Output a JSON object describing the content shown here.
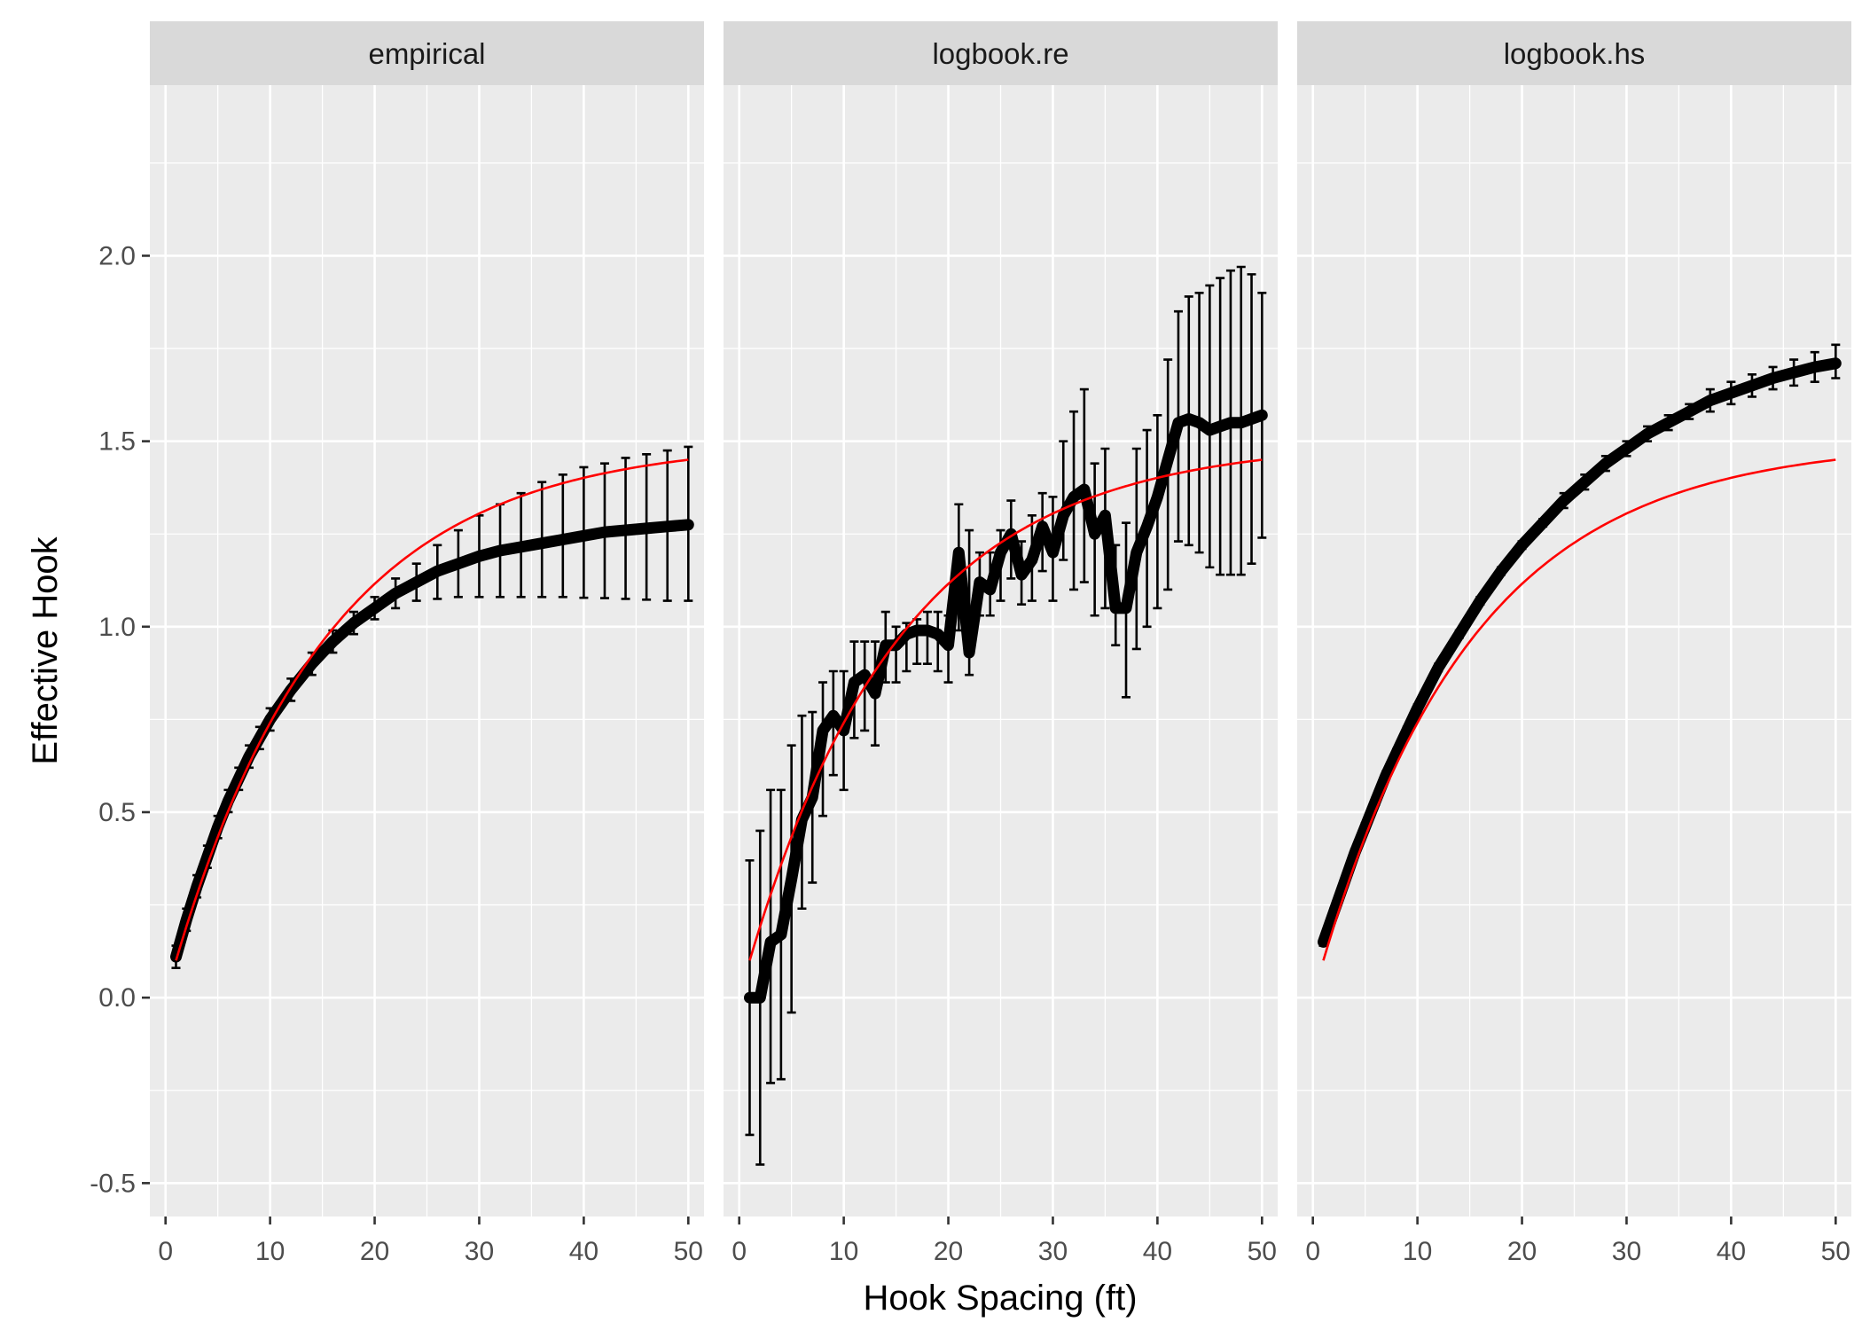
{
  "chart_data": {
    "type": "line",
    "xlabel": "Hook Spacing (ft)",
    "ylabel": "Effective Hook",
    "xlim": [
      -1.5,
      51.5
    ],
    "ylim": [
      -0.59,
      2.46
    ],
    "x_ticks": [
      0,
      10,
      20,
      30,
      40,
      50
    ],
    "y_ticks": [
      -0.5,
      0.0,
      0.5,
      1.0,
      1.5,
      2.0
    ],
    "x_tick_labels": [
      "0",
      "10",
      "20",
      "30",
      "40",
      "50"
    ],
    "y_tick_labels": [
      "-0.5",
      "0.0",
      "0.5",
      "1.0",
      "1.5",
      "2.0"
    ],
    "grid": true,
    "colors": {
      "observed": "#000000",
      "fitted": "#ff0000",
      "panel_background": "#ebebeb",
      "strip_background": "#d9d9d9"
    },
    "fit_model": {
      "x_start": 1,
      "x_end": 50,
      "y_at_start": 0.1,
      "asymptote": 1.5,
      "rate": 0.068
    },
    "panels": [
      {
        "title": "empirical",
        "observed": {
          "x": [
            1,
            2,
            3,
            4,
            5,
            6,
            7,
            8,
            9,
            10,
            12,
            14,
            16,
            18,
            20,
            22,
            24,
            26,
            28,
            30,
            32,
            34,
            36,
            38,
            40,
            42,
            44,
            46,
            48,
            50
          ],
          "y": [
            0.11,
            0.21,
            0.3,
            0.38,
            0.46,
            0.53,
            0.59,
            0.65,
            0.7,
            0.75,
            0.83,
            0.9,
            0.96,
            1.01,
            1.05,
            1.09,
            1.12,
            1.15,
            1.17,
            1.19,
            1.205,
            1.215,
            1.225,
            1.235,
            1.245,
            1.255,
            1.26,
            1.265,
            1.27,
            1.275
          ],
          "lower": [
            0.08,
            0.18,
            0.27,
            0.35,
            0.43,
            0.5,
            0.56,
            0.62,
            0.67,
            0.72,
            0.8,
            0.87,
            0.93,
            0.98,
            1.02,
            1.05,
            1.07,
            1.075,
            1.08,
            1.08,
            1.08,
            1.08,
            1.08,
            1.08,
            1.078,
            1.077,
            1.075,
            1.073,
            1.07,
            1.07
          ],
          "upper": [
            0.14,
            0.24,
            0.33,
            0.41,
            0.49,
            0.56,
            0.62,
            0.68,
            0.73,
            0.78,
            0.86,
            0.93,
            0.99,
            1.04,
            1.08,
            1.13,
            1.17,
            1.22,
            1.26,
            1.3,
            1.33,
            1.36,
            1.39,
            1.41,
            1.43,
            1.44,
            1.455,
            1.465,
            1.475,
            1.485
          ]
        }
      },
      {
        "title": "logbook.re",
        "observed": {
          "x": [
            1,
            2,
            3,
            4,
            5,
            6,
            7,
            8,
            9,
            10,
            11,
            12,
            13,
            14,
            15,
            16,
            17,
            18,
            19,
            20,
            21,
            22,
            23,
            24,
            25,
            26,
            27,
            28,
            29,
            30,
            31,
            32,
            33,
            34,
            35,
            36,
            37,
            38,
            39,
            40,
            41,
            42,
            43,
            44,
            45,
            46,
            47,
            48,
            49,
            50
          ],
          "y": [
            0.0,
            0.0,
            0.15,
            0.17,
            0.32,
            0.48,
            0.54,
            0.72,
            0.76,
            0.72,
            0.85,
            0.87,
            0.82,
            0.95,
            0.95,
            0.98,
            0.99,
            0.99,
            0.98,
            0.95,
            1.2,
            0.93,
            1.12,
            1.1,
            1.2,
            1.25,
            1.14,
            1.18,
            1.27,
            1.2,
            1.3,
            1.35,
            1.37,
            1.25,
            1.3,
            1.05,
            1.05,
            1.2,
            1.27,
            1.35,
            1.45,
            1.55,
            1.56,
            1.55,
            1.53,
            1.54,
            1.55,
            1.55,
            1.56,
            1.57
          ],
          "lower": [
            -0.37,
            -0.45,
            -0.23,
            -0.22,
            -0.04,
            0.24,
            0.31,
            0.49,
            0.6,
            0.56,
            0.7,
            0.72,
            0.68,
            0.85,
            0.85,
            0.88,
            0.9,
            0.9,
            0.88,
            0.85,
            0.99,
            0.87,
            1.03,
            1.03,
            1.07,
            1.13,
            1.06,
            1.07,
            1.15,
            1.07,
            1.18,
            1.1,
            1.12,
            1.03,
            1.05,
            0.95,
            0.81,
            0.94,
            1.0,
            1.05,
            1.1,
            1.23,
            1.22,
            1.2,
            1.16,
            1.14,
            1.14,
            1.14,
            1.17,
            1.24
          ],
          "upper": [
            0.37,
            0.45,
            0.56,
            0.56,
            0.68,
            0.76,
            0.77,
            0.85,
            0.88,
            0.88,
            0.96,
            0.96,
            0.96,
            1.04,
            1.0,
            1.01,
            1.02,
            1.04,
            1.04,
            1.03,
            1.33,
            1.26,
            1.2,
            1.2,
            1.26,
            1.34,
            1.23,
            1.3,
            1.36,
            1.35,
            1.5,
            1.58,
            1.64,
            1.44,
            1.48,
            1.22,
            1.28,
            1.48,
            1.53,
            1.57,
            1.72,
            1.85,
            1.89,
            1.9,
            1.92,
            1.94,
            1.96,
            1.97,
            1.95,
            1.9
          ]
        }
      },
      {
        "title": "logbook.hs",
        "observed": {
          "x": [
            1,
            2,
            3,
            4,
            5,
            6,
            7,
            8,
            9,
            10,
            12,
            14,
            16,
            18,
            20,
            22,
            24,
            26,
            28,
            30,
            32,
            34,
            36,
            38,
            40,
            42,
            44,
            46,
            48,
            50
          ],
          "y": [
            0.15,
            0.23,
            0.31,
            0.39,
            0.46,
            0.53,
            0.6,
            0.66,
            0.72,
            0.78,
            0.89,
            0.98,
            1.07,
            1.15,
            1.22,
            1.28,
            1.34,
            1.39,
            1.44,
            1.48,
            1.52,
            1.55,
            1.58,
            1.61,
            1.63,
            1.65,
            1.67,
            1.685,
            1.7,
            1.71
          ],
          "lower": [
            0.14,
            0.22,
            0.3,
            0.38,
            0.45,
            0.52,
            0.59,
            0.65,
            0.71,
            0.77,
            0.88,
            0.97,
            1.06,
            1.14,
            1.21,
            1.27,
            1.32,
            1.37,
            1.42,
            1.46,
            1.5,
            1.53,
            1.56,
            1.58,
            1.6,
            1.62,
            1.64,
            1.65,
            1.66,
            1.67
          ],
          "upper": [
            0.16,
            0.24,
            0.32,
            0.4,
            0.47,
            0.54,
            0.61,
            0.67,
            0.73,
            0.79,
            0.9,
            0.99,
            1.08,
            1.16,
            1.23,
            1.29,
            1.36,
            1.41,
            1.46,
            1.5,
            1.54,
            1.57,
            1.6,
            1.64,
            1.66,
            1.68,
            1.7,
            1.72,
            1.74,
            1.76
          ]
        }
      }
    ]
  }
}
